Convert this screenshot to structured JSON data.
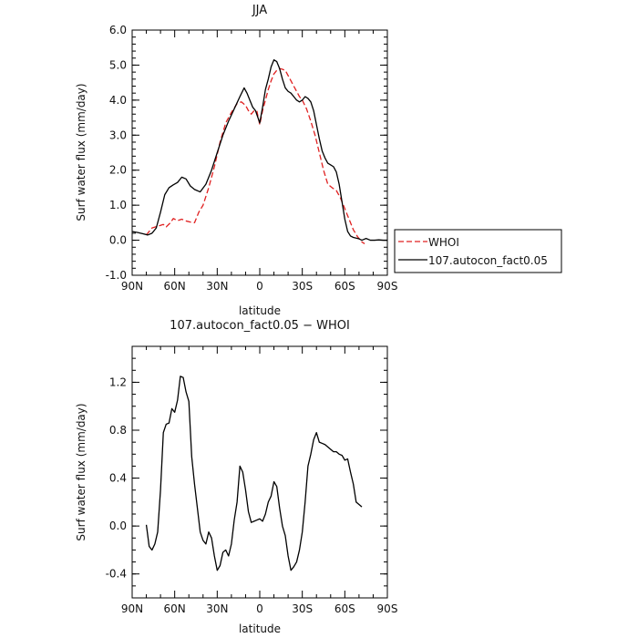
{
  "chart_data": [
    {
      "type": "line",
      "title": "JJA",
      "xlabel": "latitude",
      "ylabel": "Surf water flux (mm/day)",
      "xlim": [
        -90,
        90
      ],
      "ylim": [
        -1.0,
        6.0
      ],
      "x_ticks": [
        -90,
        -60,
        -30,
        0,
        30,
        60,
        90
      ],
      "x_tick_labels": [
        "90N",
        "60N",
        "30N",
        "0",
        "30S",
        "60S",
        "90S"
      ],
      "y_ticks": [
        -1.0,
        0.0,
        1.0,
        2.0,
        3.0,
        4.0,
        5.0,
        6.0
      ],
      "y_tick_labels": [
        "-1.0",
        "0.0",
        "1.0",
        "2.0",
        "3.0",
        "4.0",
        "5.0",
        "6.0"
      ],
      "grid": false,
      "legend_position": "right",
      "series": [
        {
          "name": "WHOI",
          "color": "#e02020",
          "style": "dashed",
          "x": [
            -80,
            -76,
            -72,
            -68,
            -66,
            -63,
            -61,
            -58,
            -55,
            -52,
            -49,
            -46,
            -43,
            -40,
            -36,
            -32,
            -28,
            -24,
            -20,
            -16,
            -13,
            -10,
            -8,
            -6,
            -4,
            -2,
            0,
            2,
            4,
            6,
            8,
            10,
            12,
            14,
            16,
            18,
            20,
            22,
            24,
            26,
            28,
            30,
            33,
            36,
            39,
            42,
            45,
            48,
            51,
            54,
            57,
            60,
            63,
            66,
            69,
            72,
            74
          ],
          "values": [
            0.15,
            0.35,
            0.4,
            0.45,
            0.38,
            0.5,
            0.62,
            0.56,
            0.6,
            0.55,
            0.52,
            0.5,
            0.8,
            1.0,
            1.5,
            2.1,
            2.8,
            3.35,
            3.65,
            3.9,
            3.95,
            3.85,
            3.7,
            3.6,
            3.7,
            3.68,
            3.3,
            3.7,
            4.0,
            4.3,
            4.55,
            4.75,
            4.85,
            4.9,
            4.88,
            4.85,
            4.7,
            4.55,
            4.4,
            4.25,
            4.1,
            4.0,
            3.75,
            3.4,
            3.0,
            2.5,
            2.0,
            1.6,
            1.5,
            1.42,
            1.2,
            0.9,
            0.6,
            0.3,
            0.1,
            -0.05,
            -0.1
          ]
        },
        {
          "name": "107.autocon_fact0.05",
          "color": "#000000",
          "style": "solid",
          "x": [
            -90,
            -86,
            -82,
            -79,
            -76,
            -73,
            -70,
            -67,
            -64,
            -61,
            -58,
            -55,
            -52,
            -49,
            -46,
            -42,
            -38,
            -34,
            -30,
            -26,
            -22,
            -18,
            -14,
            -11,
            -9,
            -7,
            -5,
            -3,
            0,
            2,
            4,
            6,
            8,
            10,
            12,
            14,
            16,
            18,
            20,
            22,
            24,
            26,
            28,
            30,
            32,
            34,
            36,
            38,
            40,
            42,
            44,
            46,
            48,
            50,
            52,
            54,
            56,
            58,
            60,
            62,
            64,
            66,
            68,
            70,
            72,
            75,
            78,
            81,
            84,
            87,
            90
          ],
          "values": [
            0.25,
            0.22,
            0.18,
            0.15,
            0.2,
            0.35,
            0.8,
            1.3,
            1.5,
            1.58,
            1.65,
            1.8,
            1.75,
            1.55,
            1.45,
            1.38,
            1.6,
            2.0,
            2.5,
            3.0,
            3.4,
            3.75,
            4.1,
            4.35,
            4.2,
            4.0,
            3.8,
            3.7,
            3.35,
            3.8,
            4.3,
            4.6,
            4.95,
            5.15,
            5.1,
            4.9,
            4.6,
            4.35,
            4.25,
            4.2,
            4.1,
            4.0,
            3.95,
            4.0,
            4.1,
            4.05,
            3.95,
            3.7,
            3.3,
            2.9,
            2.55,
            2.35,
            2.2,
            2.15,
            2.1,
            1.95,
            1.6,
            1.1,
            0.6,
            0.25,
            0.12,
            0.08,
            0.06,
            0.04,
            0.0,
            0.05,
            0.0,
            0.0,
            0.01,
            0.0,
            0.0
          ]
        }
      ]
    },
    {
      "type": "line",
      "title": "107.autocon_fact0.05 − WHOI",
      "xlabel": "latitude",
      "ylabel": "Surf water flux (mm/day)",
      "xlim": [
        -90,
        90
      ],
      "ylim": [
        -0.6,
        1.5
      ],
      "x_ticks": [
        -90,
        -60,
        -30,
        0,
        30,
        60,
        90
      ],
      "x_tick_labels": [
        "90N",
        "60N",
        "30N",
        "0",
        "30S",
        "60S",
        "90S"
      ],
      "y_ticks": [
        -0.4,
        0.0,
        0.4,
        0.8,
        1.2
      ],
      "y_tick_labels": [
        "-0.4",
        "0.0",
        "0.4",
        "0.8",
        "1.2"
      ],
      "grid": false,
      "series": [
        {
          "name": "",
          "color": "#000000",
          "style": "solid",
          "x": [
            -80,
            -78,
            -76,
            -74,
            -72,
            -70,
            -68,
            -66,
            -64,
            -62,
            -60,
            -58,
            -56,
            -54,
            -52,
            -50,
            -48,
            -46,
            -44,
            -42,
            -40,
            -38,
            -36,
            -34,
            -32,
            -30,
            -28,
            -26,
            -24,
            -22,
            -20,
            -18,
            -16,
            -14,
            -12,
            -10,
            -8,
            -6,
            -4,
            -2,
            0,
            2,
            4,
            6,
            8,
            10,
            12,
            14,
            16,
            18,
            20,
            22,
            24,
            26,
            28,
            30,
            32,
            34,
            36,
            38,
            40,
            42,
            44,
            46,
            48,
            50,
            52,
            54,
            56,
            58,
            60,
            62,
            64,
            66,
            68,
            70,
            72
          ],
          "values": [
            0.01,
            -0.17,
            -0.2,
            -0.15,
            -0.05,
            0.3,
            0.78,
            0.85,
            0.86,
            0.98,
            0.95,
            1.05,
            1.25,
            1.24,
            1.12,
            1.04,
            0.58,
            0.35,
            0.15,
            -0.05,
            -0.12,
            -0.15,
            -0.05,
            -0.1,
            -0.25,
            -0.37,
            -0.33,
            -0.22,
            -0.2,
            -0.25,
            -0.15,
            0.05,
            0.2,
            0.5,
            0.45,
            0.3,
            0.12,
            0.03,
            0.04,
            0.05,
            0.06,
            0.04,
            0.1,
            0.2,
            0.25,
            0.37,
            0.33,
            0.15,
            0.0,
            -0.08,
            -0.25,
            -0.37,
            -0.34,
            -0.3,
            -0.2,
            -0.05,
            0.2,
            0.5,
            0.6,
            0.72,
            0.78,
            0.7,
            0.69,
            0.68,
            0.66,
            0.64,
            0.62,
            0.62,
            0.6,
            0.59,
            0.55,
            0.56,
            0.45,
            0.35,
            0.2,
            0.18,
            0.16
          ]
        }
      ]
    }
  ]
}
